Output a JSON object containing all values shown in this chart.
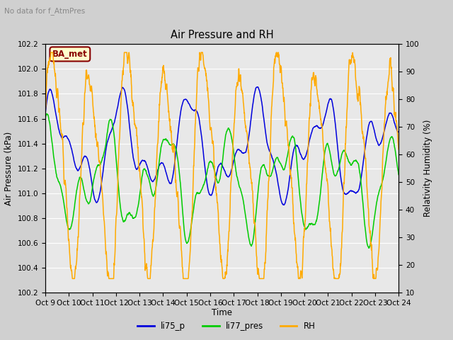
{
  "title": "Air Pressure and RH",
  "top_left_text": "No data for f_AtmPres",
  "annotation_box": "BA_met",
  "xlabel": "Time",
  "ylabel_left": "Air Pressure (kPa)",
  "ylabel_right": "Relativity Humidity (%)",
  "ylim_left": [
    100.2,
    102.2
  ],
  "ylim_right": [
    10,
    100
  ],
  "yticks_left": [
    100.2,
    100.4,
    100.6,
    100.8,
    101.0,
    101.2,
    101.4,
    101.6,
    101.8,
    102.0,
    102.2
  ],
  "yticks_right": [
    10,
    20,
    30,
    40,
    50,
    60,
    70,
    80,
    90,
    100
  ],
  "xtick_labels": [
    "Oct 9",
    "Oct 10",
    "Oct 11",
    "Oct 12",
    "Oct 13",
    "Oct 14",
    "Oct 15",
    "Oct 16",
    "Oct 17",
    "Oct 18",
    "Oct 19",
    "Oct 20",
    "Oct 21",
    "Oct 22",
    "Oct 23",
    "Oct 24"
  ],
  "color_li75_p": "#0000dd",
  "color_li77_pres": "#00cc00",
  "color_rh": "#ffaa00",
  "legend_entries": [
    "li75_p",
    "li77_pres",
    "RH"
  ],
  "bg_color": "#d0d0d0",
  "plot_bg_color": "#e8e8e8",
  "fig_width": 6.4,
  "fig_height": 4.8,
  "dpi": 100
}
